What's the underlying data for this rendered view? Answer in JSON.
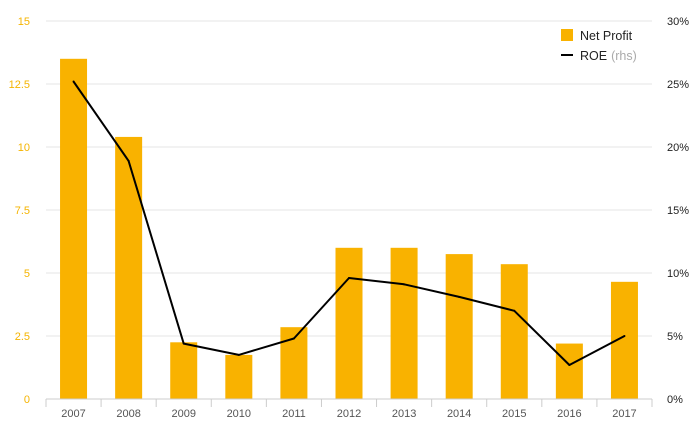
{
  "chart_data": {
    "type": "bar",
    "categories": [
      "2007",
      "2008",
      "2009",
      "2010",
      "2011",
      "2012",
      "2013",
      "2014",
      "2015",
      "2016",
      "2017"
    ],
    "series": [
      {
        "name": "Net Profit",
        "type": "bar",
        "axis": "left",
        "color": "#f9b200",
        "values": [
          13.5,
          10.4,
          2.25,
          1.75,
          2.85,
          6.0,
          6.0,
          5.75,
          5.35,
          2.2,
          4.65
        ]
      },
      {
        "name": "ROE",
        "name_note": "(rhs)",
        "type": "line",
        "axis": "right",
        "color": "#000000",
        "values": [
          25.2,
          18.9,
          4.4,
          3.5,
          4.8,
          9.6,
          9.1,
          8.1,
          7.0,
          2.7,
          5.0
        ]
      }
    ],
    "y_left": {
      "ylim": [
        0,
        15
      ],
      "ticks": [
        "0",
        "2.5",
        "5",
        "7.5",
        "10",
        "12.5",
        "15"
      ],
      "color": "#f5b400"
    },
    "y_right": {
      "ylim": [
        0,
        30
      ],
      "ticks": [
        "0%",
        "5%",
        "10%",
        "15%",
        "20%",
        "25%",
        "30%"
      ]
    },
    "grid": true,
    "legend": "top-right"
  }
}
